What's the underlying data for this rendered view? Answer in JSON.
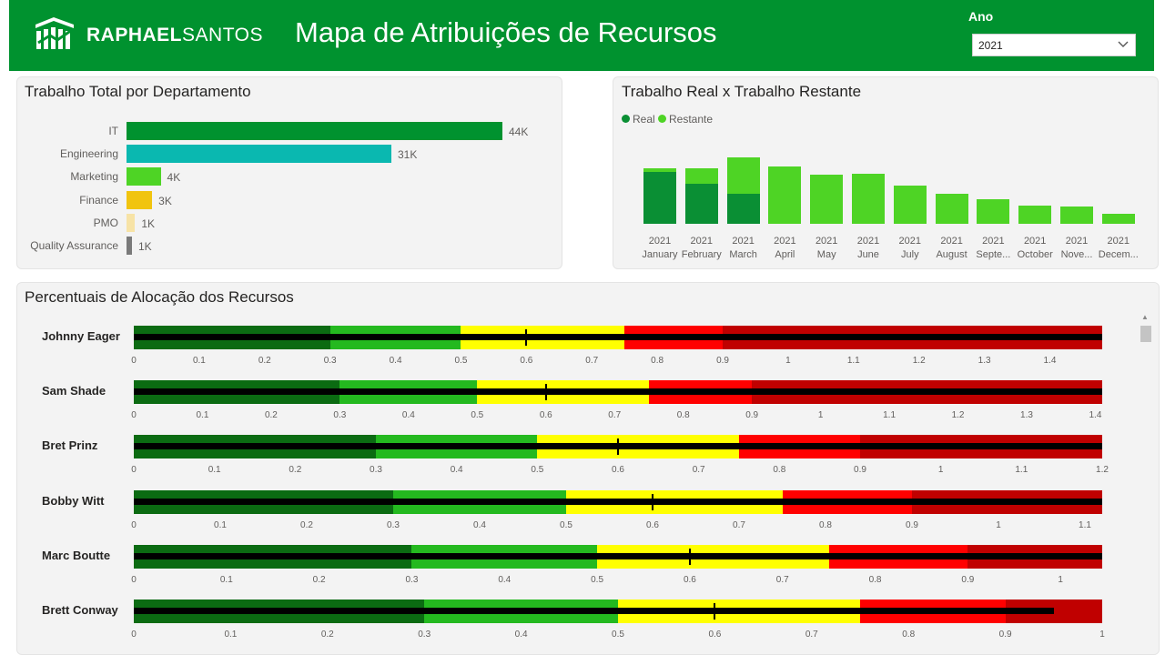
{
  "header": {
    "brand_bold": "RAPHAEL",
    "brand_thin": "SANTOS",
    "title": "Mapa de Atribuições de Recursos",
    "filter_label": "Ano",
    "filter_value": "2021",
    "color": "#00922f"
  },
  "dept_card": {
    "title": "Trabalho Total por Departamento",
    "items": [
      {
        "label": "IT",
        "value": 44000,
        "display": "44K",
        "color": "#00922f"
      },
      {
        "label": "Engineering",
        "value": 31000,
        "display": "31K",
        "color": "#0ab8b0"
      },
      {
        "label": "Marketing",
        "value": 4000,
        "display": "4K",
        "color": "#4ed425"
      },
      {
        "label": "Finance",
        "value": 3000,
        "display": "3K",
        "color": "#f1c40f"
      },
      {
        "label": "PMO",
        "value": 1000,
        "display": "1K",
        "color": "#f7e3a6"
      },
      {
        "label": "Quality Assurance",
        "value": 600,
        "display": "1K",
        "color": "#7a7a7a"
      }
    ]
  },
  "work_card": {
    "title": "Trabalho Real x Trabalho Restante",
    "legend": [
      {
        "label": "Real",
        "color": "#0a8f34"
      },
      {
        "label": "Restante",
        "color": "#4ed425"
      }
    ]
  },
  "chart_data": {
    "type": "bar",
    "stacked": true,
    "title": "Trabalho Real x Trabalho Restante",
    "year": "2021",
    "categories": [
      "January",
      "February",
      "March",
      "April",
      "May",
      "June",
      "July",
      "August",
      "Septe...",
      "October",
      "Nove...",
      "Decem..."
    ],
    "series": [
      {
        "name": "Real",
        "values": [
          57,
          44,
          33,
          0,
          0,
          0,
          0,
          0,
          0,
          0,
          0,
          0
        ]
      },
      {
        "name": "Restante",
        "values": [
          4,
          17,
          40,
          63,
          54,
          55,
          42,
          33,
          27,
          20,
          19,
          11
        ]
      }
    ]
  },
  "alloc_card": {
    "title": "Percentuais de Alocação dos Recursos",
    "band_colors": [
      "#0b6b12",
      "#24b91f",
      "#ffff00",
      "#ff0000",
      "#c00000"
    ],
    "rows": [
      {
        "name": "Johnny Eager",
        "max": 1.48,
        "bands": [
          0.3,
          0.5,
          0.75,
          0.9
        ],
        "value": 1.48,
        "target": 0.6,
        "ticks": [
          "0",
          "0.1",
          "0.2",
          "0.3",
          "0.4",
          "0.5",
          "0.6",
          "0.7",
          "0.8",
          "0.9",
          "1",
          "1.1",
          "1.2",
          "1.3",
          "1.4"
        ]
      },
      {
        "name": "Sam Shade",
        "max": 1.41,
        "bands": [
          0.3,
          0.5,
          0.75,
          0.9
        ],
        "value": 1.41,
        "target": 0.6,
        "ticks": [
          "0",
          "0.1",
          "0.2",
          "0.3",
          "0.4",
          "0.5",
          "0.6",
          "0.7",
          "0.8",
          "0.9",
          "1",
          "1.1",
          "1.2",
          "1.3",
          "1.4"
        ]
      },
      {
        "name": "Bret Prinz",
        "max": 1.2,
        "bands": [
          0.3,
          0.5,
          0.75,
          0.9
        ],
        "value": 1.2,
        "target": 0.6,
        "ticks": [
          "0",
          "0.1",
          "0.2",
          "0.3",
          "0.4",
          "0.5",
          "0.6",
          "0.7",
          "0.8",
          "0.9",
          "1",
          "1.1",
          "1.2"
        ]
      },
      {
        "name": "Bobby Witt",
        "max": 1.12,
        "bands": [
          0.3,
          0.5,
          0.75,
          0.9
        ],
        "value": 1.12,
        "target": 0.6,
        "ticks": [
          "0",
          "0.1",
          "0.2",
          "0.3",
          "0.4",
          "0.5",
          "0.6",
          "0.7",
          "0.8",
          "0.9",
          "1",
          "1.1"
        ]
      },
      {
        "name": "Marc Boutte",
        "max": 1.045,
        "bands": [
          0.3,
          0.5,
          0.75,
          0.9
        ],
        "value": 1.045,
        "target": 0.6,
        "ticks": [
          "0",
          "0.1",
          "0.2",
          "0.3",
          "0.4",
          "0.5",
          "0.6",
          "0.7",
          "0.8",
          "0.9",
          "1"
        ]
      },
      {
        "name": "Brett Conway",
        "max": 1.0,
        "bands": [
          0.3,
          0.5,
          0.75,
          0.9
        ],
        "value": 0.95,
        "target": 0.6,
        "ticks": [
          "0",
          "0.1",
          "0.2",
          "0.3",
          "0.4",
          "0.5",
          "0.6",
          "0.7",
          "0.8",
          "0.9",
          "1"
        ]
      }
    ]
  }
}
